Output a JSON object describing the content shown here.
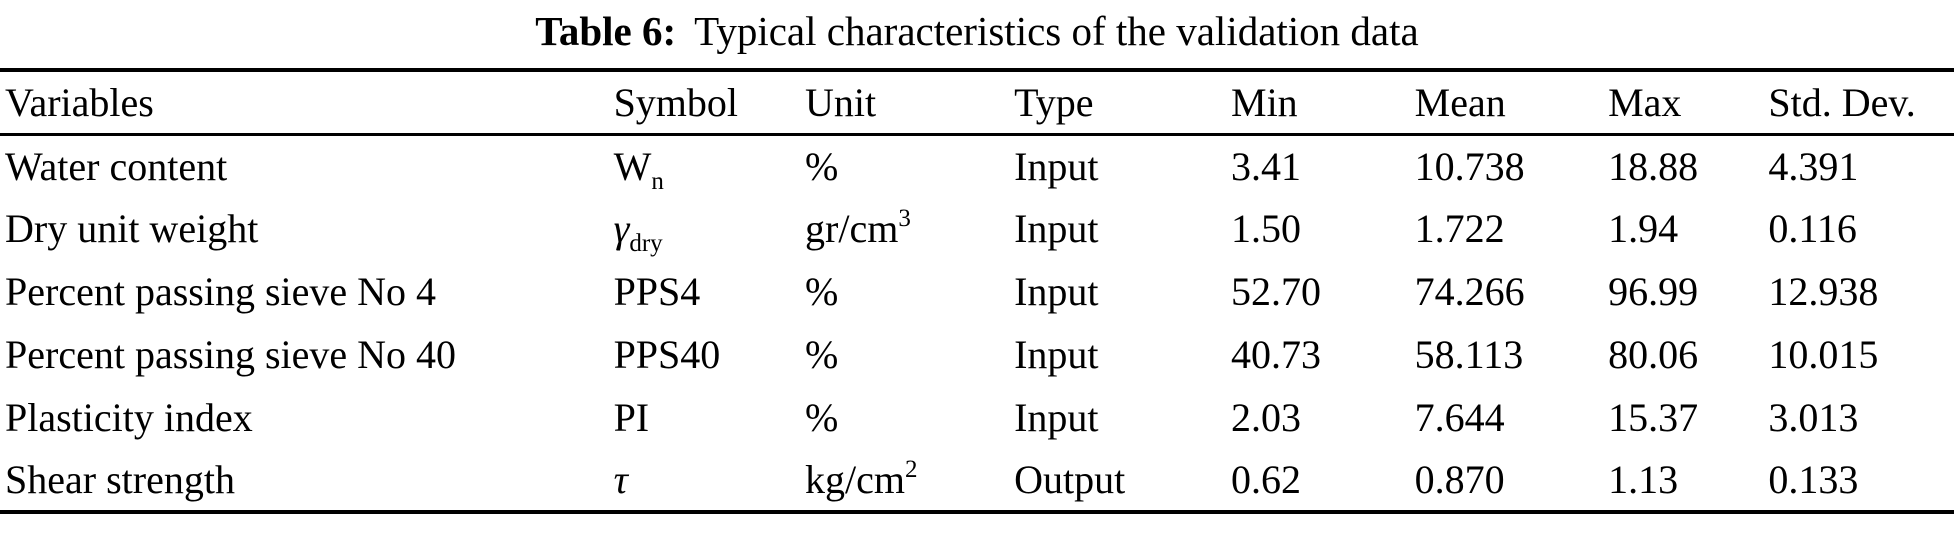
{
  "caption": {
    "label": "Table 6:",
    "text": "Typical characteristics of the validation data"
  },
  "table": {
    "columns": [
      "Variables",
      "Symbol",
      "Unit",
      "Type",
      "Min",
      "Mean",
      "Max",
      "Std. Dev."
    ],
    "rows": [
      {
        "variable": "Water content",
        "sym": "W",
        "sym_sub": "n",
        "unit": "%",
        "unit_sup": "",
        "type": "Input",
        "min": "3.41",
        "mean": "10.738",
        "max": "18.88",
        "std_dev": "4.391"
      },
      {
        "variable": "Dry unit weight",
        "sym": "γ",
        "sym_sub": "dry",
        "unit": "gr/cm",
        "unit_sup": "3",
        "type": "Input",
        "min": "1.50",
        "mean": "1.722",
        "max": "1.94",
        "std_dev": "0.116"
      },
      {
        "variable": "Percent passing sieve No 4",
        "sym": "PPS4",
        "sym_sub": "",
        "unit": "%",
        "unit_sup": "",
        "type": "Input",
        "min": "52.70",
        "mean": "74.266",
        "max": "96.99",
        "std_dev": "12.938"
      },
      {
        "variable": "Percent passing sieve No 40",
        "sym": "PPS40",
        "sym_sub": "",
        "unit": "%",
        "unit_sup": "",
        "type": "Input",
        "min": "40.73",
        "mean": "58.113",
        "max": "80.06",
        "std_dev": "10.015"
      },
      {
        "variable": "Plasticity index",
        "sym": "PI",
        "sym_sub": "",
        "unit": "%",
        "unit_sup": "",
        "type": "Input",
        "min": "2.03",
        "mean": "7.644",
        "max": "15.37",
        "std_dev": "3.013"
      },
      {
        "variable": "Shear strength",
        "sym": "τ",
        "sym_sub": "",
        "unit": "kg/cm",
        "unit_sup": "2",
        "type": "Output",
        "min": "0.62",
        "mean": "0.870",
        "max": "1.13",
        "std_dev": "0.133"
      }
    ]
  }
}
